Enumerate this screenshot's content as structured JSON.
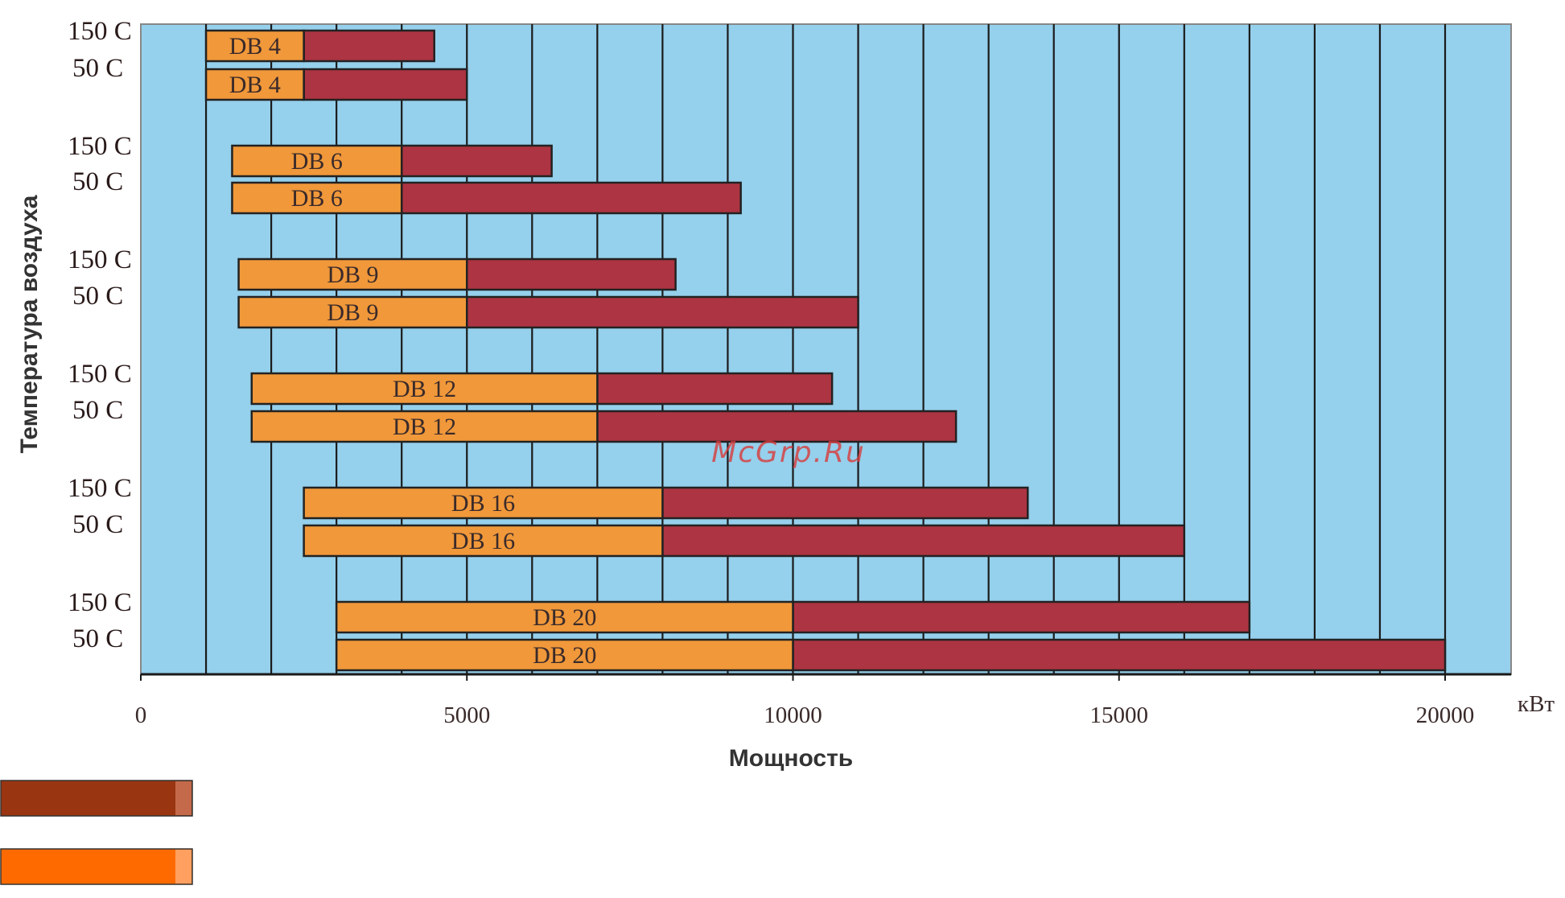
{
  "chart_data": {
    "type": "bar",
    "orientation": "horizontal",
    "stacked": true,
    "xlabel": "Мощность",
    "ylabel": "Температура воздуха",
    "x_unit": "кВт",
    "xlim": [
      0,
      21000
    ],
    "x_ticks": [
      0,
      5000,
      10000,
      15000,
      20000
    ],
    "grid_step": 1000,
    "grid": true,
    "background_color": "#95d0ec",
    "series": [
      {
        "key": "base",
        "color": "#f0983a"
      },
      {
        "key": "extended",
        "color": "#ad3442"
      }
    ],
    "groups": [
      {
        "model": "DB 4",
        "rows": [
          {
            "temp": "150 C",
            "start": 1000,
            "mid": 2500,
            "end": 4500
          },
          {
            "temp": "50 C",
            "start": 1000,
            "mid": 2500,
            "end": 5000
          }
        ]
      },
      {
        "model": "DB 6",
        "rows": [
          {
            "temp": "150 C",
            "start": 1400,
            "mid": 4000,
            "end": 6300
          },
          {
            "temp": "50 C",
            "start": 1400,
            "mid": 4000,
            "end": 9200
          }
        ]
      },
      {
        "model": "DB 9",
        "rows": [
          {
            "temp": "150 C",
            "start": 1500,
            "mid": 5000,
            "end": 8200
          },
          {
            "temp": "50 C",
            "start": 1500,
            "mid": 5000,
            "end": 11000
          }
        ]
      },
      {
        "model": "DB 12",
        "rows": [
          {
            "temp": "150 C",
            "start": 1700,
            "mid": 7000,
            "end": 10600
          },
          {
            "temp": "50 C",
            "start": 1700,
            "mid": 7000,
            "end": 12500
          }
        ]
      },
      {
        "model": "DB 16",
        "rows": [
          {
            "temp": "150 C",
            "start": 2500,
            "mid": 8000,
            "end": 13600
          },
          {
            "temp": "50 C",
            "start": 2500,
            "mid": 8000,
            "end": 16000
          }
        ]
      },
      {
        "model": "DB 20",
        "rows": [
          {
            "temp": "150 C",
            "start": 3000,
            "mid": 10000,
            "end": 17000
          },
          {
            "temp": "50 C",
            "start": 3000,
            "mid": 10000,
            "end": 20000
          }
        ]
      }
    ],
    "legend_swatches": [
      {
        "color": "#9a3511",
        "edge": "#c46a4a"
      },
      {
        "color": "#ff6a00",
        "edge": "#ffa060"
      }
    ]
  },
  "watermark": "McGrp.Ru"
}
